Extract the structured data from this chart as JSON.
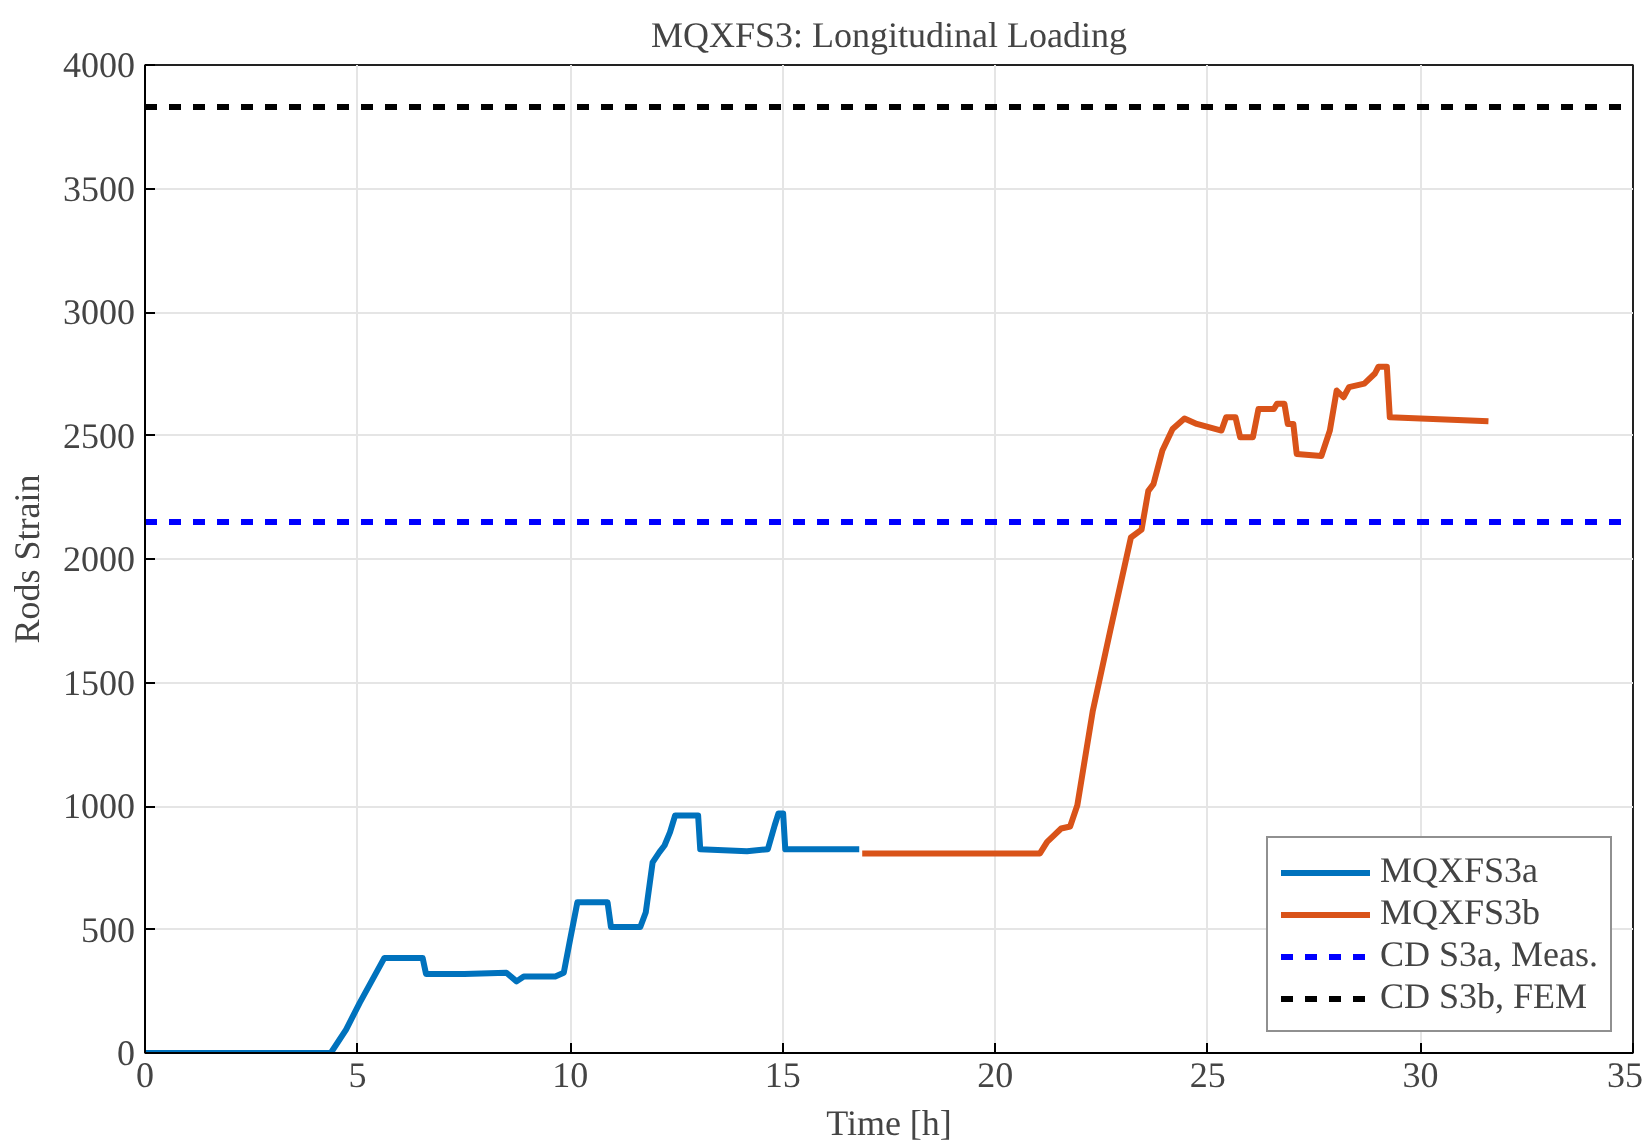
{
  "chart_data": {
    "type": "line",
    "title": "MQXFS3: Longitudinal Loading",
    "xlabel": "Time [h]",
    "ylabel": "Rods Strain",
    "xlim": [
      0,
      35
    ],
    "ylim": [
      0,
      4000
    ],
    "xticks": [
      0,
      5,
      10,
      15,
      20,
      25,
      30,
      35
    ],
    "yticks": [
      0,
      500,
      1000,
      1500,
      2000,
      2500,
      3000,
      3500,
      4000
    ],
    "grid": true,
    "legend": "bottom right",
    "line_style": "solid",
    "marker": "none",
    "series": [
      {
        "name": "MQXFS3a",
        "color": "#0072bd",
        "x": [
          0,
          4.37,
          4.73,
          5.05,
          5.63,
          6.53,
          6.61,
          7.51,
          8.5,
          8.74,
          8.91,
          9.65,
          9.85,
          10.0,
          10.17,
          10.88,
          10.96,
          11.65,
          11.78,
          11.94,
          12.1,
          12.22,
          12.35,
          12.47,
          13.01,
          13.06,
          14.16,
          14.65,
          14.81,
          14.9,
          15.01,
          15.06,
          16.8
        ],
        "values": [
          0,
          0,
          95,
          203,
          385,
          385,
          320,
          320,
          325,
          290,
          310,
          310,
          325,
          460,
          610,
          610,
          510,
          510,
          570,
          772,
          813,
          840,
          894,
          962,
          962,
          825,
          817,
          825,
          921,
          970,
          970,
          825,
          825
        ]
      },
      {
        "name": "MQXFS3b",
        "color": "#d95319",
        "x": [
          16.87,
          21.05,
          21.22,
          21.55,
          21.76,
          21.93,
          22.29,
          22.7,
          23.19,
          23.44,
          23.6,
          23.72,
          23.93,
          24.17,
          24.45,
          24.74,
          25.32,
          25.43,
          25.65,
          25.76,
          26.06,
          26.19,
          26.55,
          26.63,
          26.8,
          26.88,
          27.01,
          27.09,
          27.67,
          27.87,
          28.03,
          28.19,
          28.32,
          28.68,
          28.93,
          29.01,
          29.21,
          29.28,
          31.6
        ],
        "values": [
          808,
          808,
          855,
          909,
          917,
          1003,
          1382,
          1707,
          2087,
          2119,
          2276,
          2303,
          2439,
          2526,
          2569,
          2547,
          2520,
          2574,
          2574,
          2493,
          2493,
          2607,
          2607,
          2629,
          2629,
          2547,
          2547,
          2425,
          2417,
          2520,
          2682,
          2655,
          2696,
          2710,
          2751,
          2778,
          2778,
          2574,
          2558
        ]
      }
    ],
    "ref_lines": [
      {
        "axis": "y",
        "value": 2150,
        "label": "CD S3a, Meas.",
        "color": "#0000ff",
        "line_style": "dashed"
      },
      {
        "axis": "y",
        "value": 3830,
        "label": "CD S3b, FEM",
        "color": "#000000",
        "line_style": "dashed"
      }
    ]
  }
}
